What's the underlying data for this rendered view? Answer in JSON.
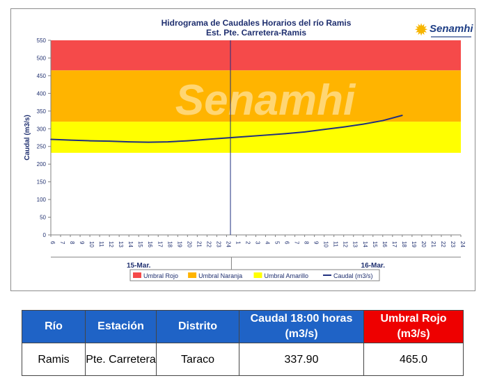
{
  "chart_data": {
    "type": "line",
    "title": "Hidrograma de Caudales Horarios del río Ramis",
    "subtitle": "Est. Pte. Carretera-Ramis",
    "watermark": "Senamhi",
    "ylabel": "Caudal  (m3/s)",
    "ylim": [
      0,
      550
    ],
    "yticks": [
      0,
      50,
      100,
      150,
      200,
      250,
      300,
      350,
      400,
      450,
      500,
      550
    ],
    "xlim": [
      6,
      48
    ],
    "xtick_labels": [
      "6",
      "7",
      "8",
      "9",
      "10",
      "11",
      "12",
      "13",
      "14",
      "15",
      "16",
      "17",
      "18",
      "19",
      "20",
      "21",
      "22",
      "23",
      "24",
      "1",
      "2",
      "3",
      "4",
      "5",
      "6",
      "7",
      "8",
      "9",
      "10",
      "11",
      "12",
      "13",
      "14",
      "15",
      "16",
      "17",
      "18",
      "19",
      "20",
      "21",
      "22",
      "23",
      "24"
    ],
    "day_labels": [
      "15-Mar.",
      "16-Mar."
    ],
    "grid": false,
    "legend_position": "bottom",
    "bands": [
      {
        "name": "Umbral Rojo",
        "from": 465,
        "to": 550,
        "color": "#f54a4a"
      },
      {
        "name": "Umbral Naranja",
        "from": 320,
        "to": 465,
        "color": "#ffb400"
      },
      {
        "name": "Umbral Amarillo",
        "from": 232,
        "to": 320,
        "color": "#ffff00"
      }
    ],
    "series": [
      {
        "name": "Caudal (m3/s)",
        "color": "#1f2f7f",
        "x": [
          6,
          8,
          10,
          12,
          14,
          16,
          18,
          20,
          22,
          24,
          26,
          28,
          30,
          32,
          34,
          36,
          38,
          40,
          42
        ],
        "y": [
          270,
          268,
          266,
          265,
          263,
          262,
          263,
          266,
          270,
          274,
          278,
          282,
          286,
          291,
          298,
          305,
          313,
          323,
          337.9
        ]
      }
    ],
    "cursor_line": {
      "x": 24.4,
      "y_from": 0,
      "y_to": 550
    }
  },
  "logo": {
    "text": "Senamhi"
  },
  "table": {
    "headers": [
      "Río",
      "Estación",
      "Distrito",
      "Caudal  18:00 horas (m3/s)",
      "Umbral Rojo (m3/s)"
    ],
    "row": [
      "Ramis",
      "Pte. Carretera",
      "Taraco",
      "337.90",
      "465.0"
    ]
  },
  "colors": {
    "header_blue": "#1f63c6",
    "header_red": "#ee0000"
  }
}
